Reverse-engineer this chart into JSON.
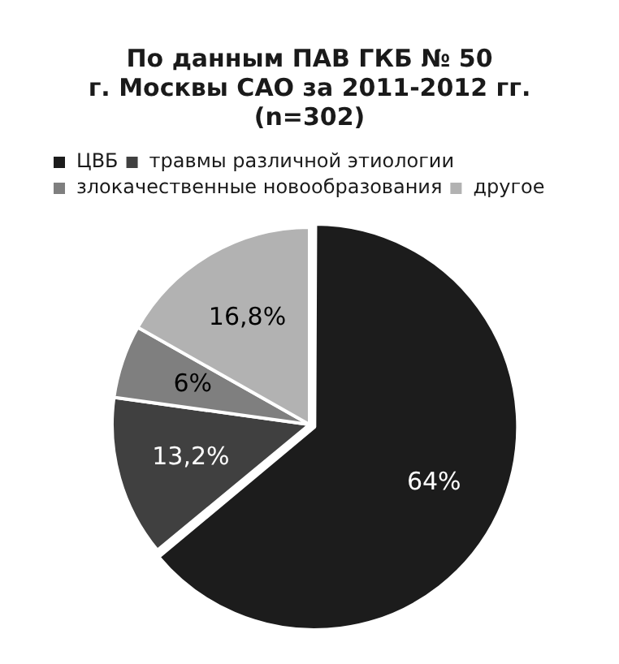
{
  "chart_data": {
    "type": "pie",
    "title": "По данным ПАВ ГКБ № 50\nг. Москвы САО за 2011-2012 гг.\n(n=302)",
    "categories": [
      "ЦВБ",
      "травмы различной этиологии",
      "злокачественные новообразования",
      "другое"
    ],
    "values": [
      64,
      13.2,
      6,
      16.8
    ],
    "value_labels": [
      "64%",
      "13,2%",
      "6%",
      "16,8%"
    ],
    "colors": [
      "#1c1c1c",
      "#404040",
      "#7f7f7f",
      "#b2b2b2"
    ],
    "legend": "top left"
  }
}
